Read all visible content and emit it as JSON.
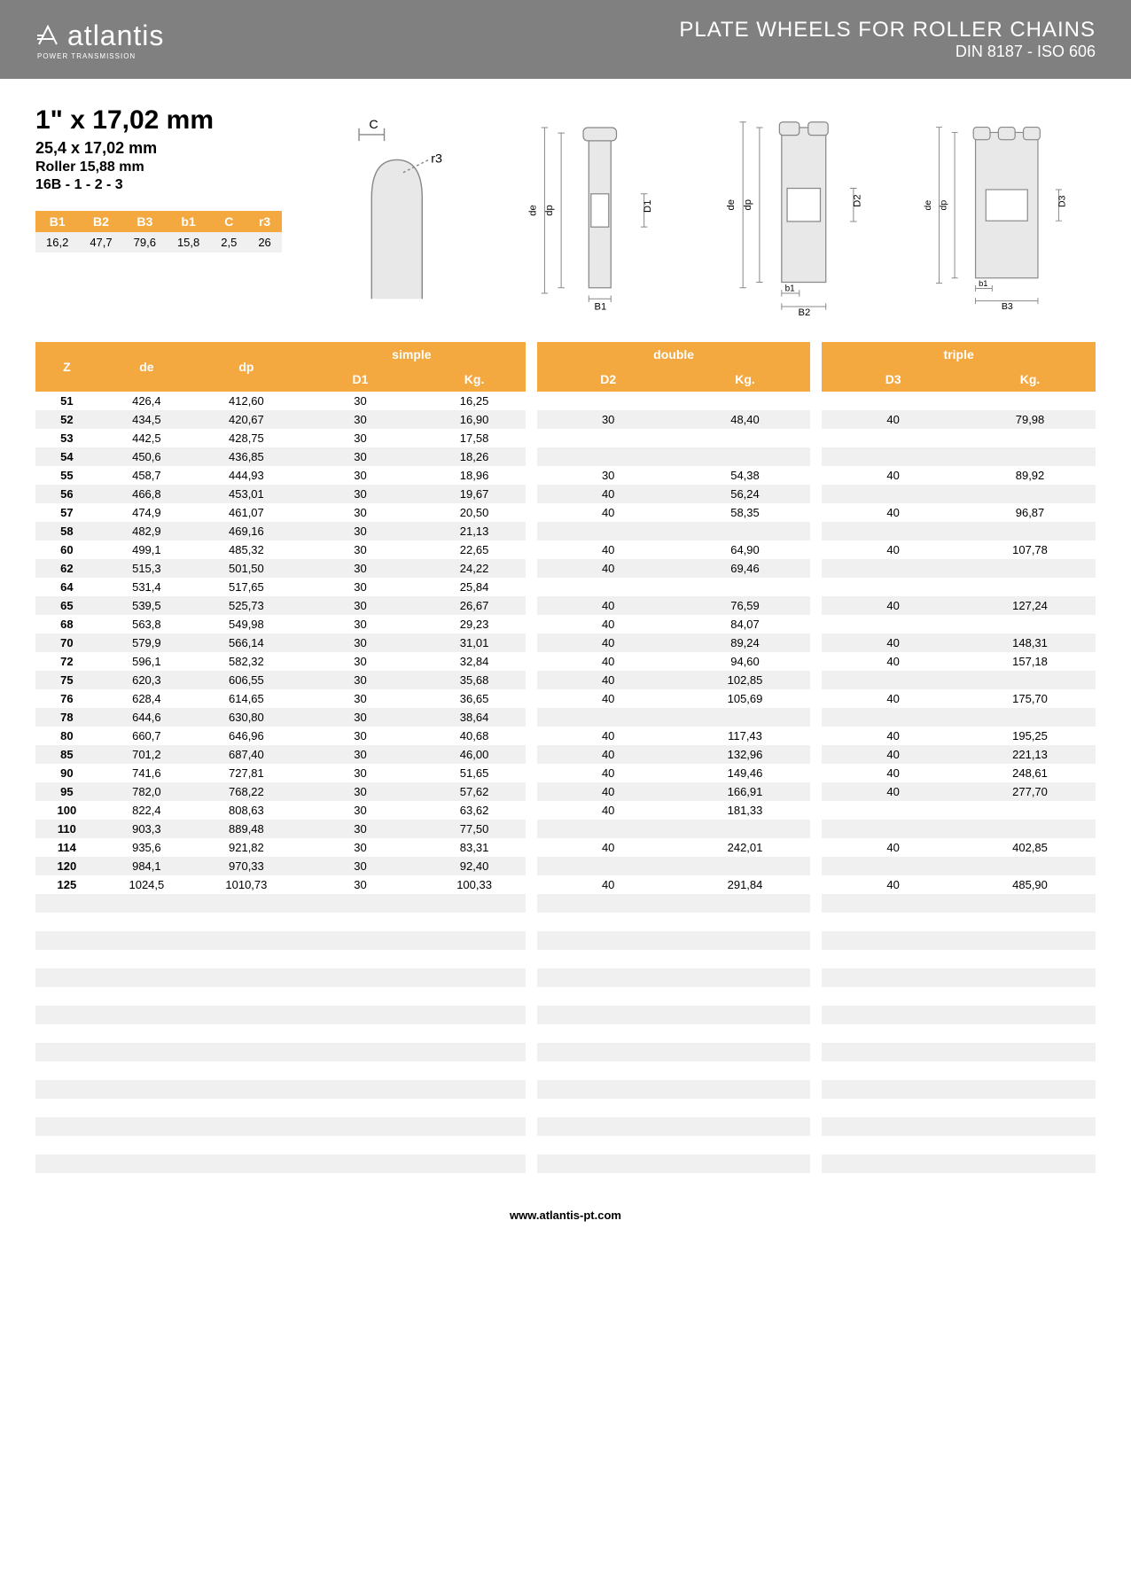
{
  "header": {
    "logo": "atlantis",
    "logo_tagline": "POWER TRANSMISSION",
    "title": "PLATE WHEELS FOR ROLLER CHAINS",
    "subtitle": "DIN 8187 - ISO 606"
  },
  "spec": {
    "title": "1\" x 17,02 mm",
    "sub1": "25,4 x 17,02 mm",
    "sub2": "Roller 15,88 mm",
    "sub3": "16B - 1 - 2 - 3"
  },
  "smallTable": {
    "headers": [
      "B1",
      "B2",
      "B3",
      "b1",
      "C",
      "r3"
    ],
    "row": [
      "16,2",
      "47,7",
      "79,6",
      "15,8",
      "2,5",
      "26"
    ]
  },
  "colors": {
    "headerBar": "#808080",
    "accent": "#f4a940",
    "rowAlt": "#f0f0f0"
  },
  "mainHeaders": {
    "z": "Z",
    "de": "de",
    "dp": "dp",
    "simple": "simple",
    "d1": "D1",
    "kg": "Kg.",
    "double": "double",
    "d2": "D2",
    "triple": "triple",
    "d3": "D3"
  },
  "rows": [
    {
      "z": "51",
      "de": "426,4",
      "dp": "412,60",
      "d1": "30",
      "kg1": "16,25",
      "d2": "",
      "kg2": "",
      "d3": "",
      "kg3": ""
    },
    {
      "z": "52",
      "de": "434,5",
      "dp": "420,67",
      "d1": "30",
      "kg1": "16,90",
      "d2": "30",
      "kg2": "48,40",
      "d3": "40",
      "kg3": "79,98"
    },
    {
      "z": "53",
      "de": "442,5",
      "dp": "428,75",
      "d1": "30",
      "kg1": "17,58",
      "d2": "",
      "kg2": "",
      "d3": "",
      "kg3": ""
    },
    {
      "z": "54",
      "de": "450,6",
      "dp": "436,85",
      "d1": "30",
      "kg1": "18,26",
      "d2": "",
      "kg2": "",
      "d3": "",
      "kg3": ""
    },
    {
      "z": "55",
      "de": "458,7",
      "dp": "444,93",
      "d1": "30",
      "kg1": "18,96",
      "d2": "30",
      "kg2": "54,38",
      "d3": "40",
      "kg3": "89,92"
    },
    {
      "z": "56",
      "de": "466,8",
      "dp": "453,01",
      "d1": "30",
      "kg1": "19,67",
      "d2": "40",
      "kg2": "56,24",
      "d3": "",
      "kg3": ""
    },
    {
      "z": "57",
      "de": "474,9",
      "dp": "461,07",
      "d1": "30",
      "kg1": "20,50",
      "d2": "40",
      "kg2": "58,35",
      "d3": "40",
      "kg3": "96,87"
    },
    {
      "z": "58",
      "de": "482,9",
      "dp": "469,16",
      "d1": "30",
      "kg1": "21,13",
      "d2": "",
      "kg2": "",
      "d3": "",
      "kg3": ""
    },
    {
      "z": "60",
      "de": "499,1",
      "dp": "485,32",
      "d1": "30",
      "kg1": "22,65",
      "d2": "40",
      "kg2": "64,90",
      "d3": "40",
      "kg3": "107,78"
    },
    {
      "z": "62",
      "de": "515,3",
      "dp": "501,50",
      "d1": "30",
      "kg1": "24,22",
      "d2": "40",
      "kg2": "69,46",
      "d3": "",
      "kg3": ""
    },
    {
      "z": "64",
      "de": "531,4",
      "dp": "517,65",
      "d1": "30",
      "kg1": "25,84",
      "d2": "",
      "kg2": "",
      "d3": "",
      "kg3": ""
    },
    {
      "z": "65",
      "de": "539,5",
      "dp": "525,73",
      "d1": "30",
      "kg1": "26,67",
      "d2": "40",
      "kg2": "76,59",
      "d3": "40",
      "kg3": "127,24"
    },
    {
      "z": "68",
      "de": "563,8",
      "dp": "549,98",
      "d1": "30",
      "kg1": "29,23",
      "d2": "40",
      "kg2": "84,07",
      "d3": "",
      "kg3": ""
    },
    {
      "z": "70",
      "de": "579,9",
      "dp": "566,14",
      "d1": "30",
      "kg1": "31,01",
      "d2": "40",
      "kg2": "89,24",
      "d3": "40",
      "kg3": "148,31"
    },
    {
      "z": "72",
      "de": "596,1",
      "dp": "582,32",
      "d1": "30",
      "kg1": "32,84",
      "d2": "40",
      "kg2": "94,60",
      "d3": "40",
      "kg3": "157,18"
    },
    {
      "z": "75",
      "de": "620,3",
      "dp": "606,55",
      "d1": "30",
      "kg1": "35,68",
      "d2": "40",
      "kg2": "102,85",
      "d3": "",
      "kg3": ""
    },
    {
      "z": "76",
      "de": "628,4",
      "dp": "614,65",
      "d1": "30",
      "kg1": "36,65",
      "d2": "40",
      "kg2": "105,69",
      "d3": "40",
      "kg3": "175,70"
    },
    {
      "z": "78",
      "de": "644,6",
      "dp": "630,80",
      "d1": "30",
      "kg1": "38,64",
      "d2": "",
      "kg2": "",
      "d3": "",
      "kg3": ""
    },
    {
      "z": "80",
      "de": "660,7",
      "dp": "646,96",
      "d1": "30",
      "kg1": "40,68",
      "d2": "40",
      "kg2": "117,43",
      "d3": "40",
      "kg3": "195,25"
    },
    {
      "z": "85",
      "de": "701,2",
      "dp": "687,40",
      "d1": "30",
      "kg1": "46,00",
      "d2": "40",
      "kg2": "132,96",
      "d3": "40",
      "kg3": "221,13"
    },
    {
      "z": "90",
      "de": "741,6",
      "dp": "727,81",
      "d1": "30",
      "kg1": "51,65",
      "d2": "40",
      "kg2": "149,46",
      "d3": "40",
      "kg3": "248,61"
    },
    {
      "z": "95",
      "de": "782,0",
      "dp": "768,22",
      "d1": "30",
      "kg1": "57,62",
      "d2": "40",
      "kg2": "166,91",
      "d3": "40",
      "kg3": "277,70"
    },
    {
      "z": "100",
      "de": "822,4",
      "dp": "808,63",
      "d1": "30",
      "kg1": "63,62",
      "d2": "40",
      "kg2": "181,33",
      "d3": "",
      "kg3": ""
    },
    {
      "z": "110",
      "de": "903,3",
      "dp": "889,48",
      "d1": "30",
      "kg1": "77,50",
      "d2": "",
      "kg2": "",
      "d3": "",
      "kg3": ""
    },
    {
      "z": "114",
      "de": "935,6",
      "dp": "921,82",
      "d1": "30",
      "kg1": "83,31",
      "d2": "40",
      "kg2": "242,01",
      "d3": "40",
      "kg3": "402,85"
    },
    {
      "z": "120",
      "de": "984,1",
      "dp": "970,33",
      "d1": "30",
      "kg1": "92,40",
      "d2": "",
      "kg2": "",
      "d3": "",
      "kg3": ""
    },
    {
      "z": "125",
      "de": "1024,5",
      "dp": "1010,73",
      "d1": "30",
      "kg1": "100,33",
      "d2": "40",
      "kg2": "291,84",
      "d3": "40",
      "kg3": "485,90"
    }
  ],
  "emptyRows": 15,
  "footer": "www.atlantis-pt.com",
  "diagramLabels": {
    "c": "C",
    "r3": "r3",
    "de": "de",
    "dp": "dp",
    "d1": "D1",
    "d2": "D2",
    "d3": "D3",
    "b1u": "B1",
    "b1": "b1",
    "b2": "B2",
    "b3": "B3"
  }
}
